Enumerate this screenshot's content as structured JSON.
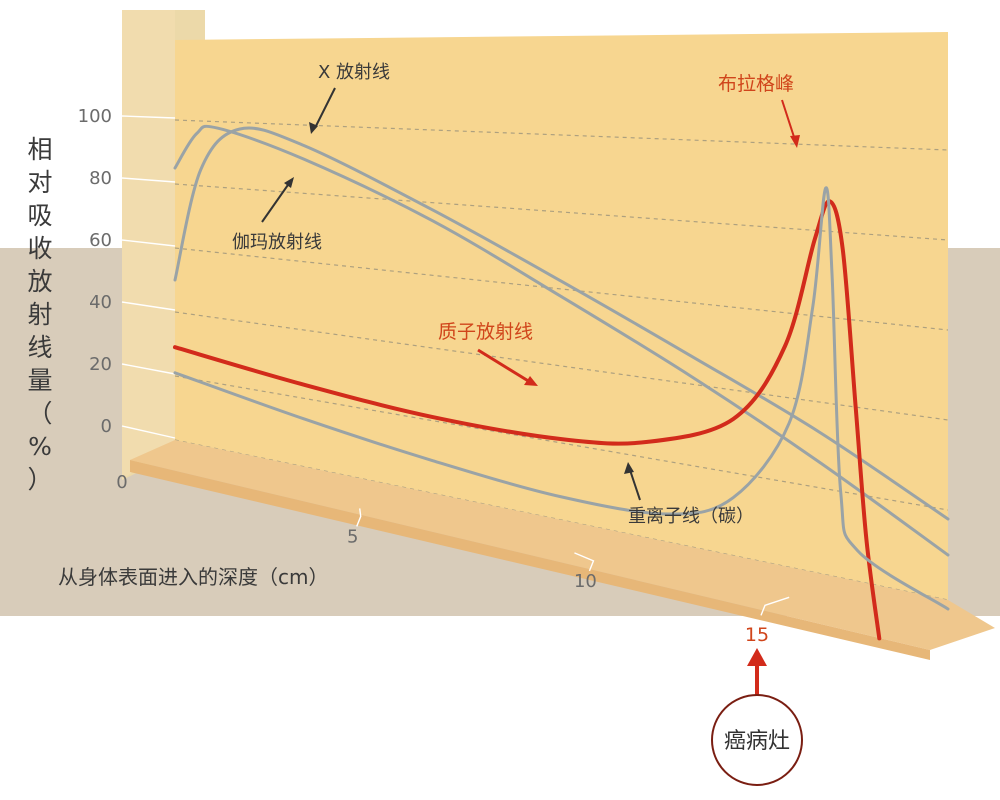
{
  "chart_data": {
    "type": "line",
    "ylabel": "相对吸收放射线量（%）",
    "xlabel": "从身体表面进入的深度（cm）",
    "y_ticks": [
      "100",
      "80",
      "60",
      "40",
      "20",
      "0"
    ],
    "x_ticks": [
      "0",
      "5",
      "10",
      "15"
    ],
    "ylim": [
      0,
      100
    ],
    "xlim": [
      0,
      18
    ],
    "grid": true,
    "series": [
      {
        "name": "X 放射线",
        "color": "#9aa3a6",
        "points": [
          [
            0,
            50
          ],
          [
            0.6,
            85
          ],
          [
            1.5,
            98
          ],
          [
            3,
            94
          ],
          [
            6,
            78
          ],
          [
            9,
            62
          ],
          [
            12,
            47
          ],
          [
            15,
            33
          ],
          [
            18,
            18
          ]
        ]
      },
      {
        "name": "伽玛放射线",
        "color": "#9aa3a6",
        "points": [
          [
            0,
            85
          ],
          [
            0.5,
            96
          ],
          [
            1,
            98
          ],
          [
            3,
            90
          ],
          [
            6,
            75
          ],
          [
            9,
            58
          ],
          [
            12,
            42
          ],
          [
            15,
            26
          ],
          [
            18,
            10
          ]
        ]
      },
      {
        "name": "质子放射线",
        "color": "#d22b1b",
        "points": [
          [
            0,
            29
          ],
          [
            3,
            24
          ],
          [
            6,
            21
          ],
          [
            9,
            21
          ],
          [
            11,
            24
          ],
          [
            13,
            33
          ],
          [
            14.2,
            52
          ],
          [
            14.9,
            78
          ],
          [
            15.25,
            87
          ],
          [
            15.55,
            76
          ],
          [
            15.85,
            40
          ],
          [
            16.1,
            10
          ],
          [
            16.4,
            -12
          ]
        ]
      },
      {
        "name": "重离子线（碳）",
        "color": "#9aa3a6",
        "points": [
          [
            0,
            21
          ],
          [
            3,
            14
          ],
          [
            6,
            9
          ],
          [
            9,
            6
          ],
          [
            11.5,
            7
          ],
          [
            13,
            14
          ],
          [
            14.3,
            34
          ],
          [
            14.85,
            62
          ],
          [
            15.15,
            90
          ],
          [
            15.3,
            70
          ],
          [
            15.5,
            20
          ],
          [
            15.9,
            7
          ],
          [
            18,
            -2
          ]
        ]
      }
    ],
    "annotations": {
      "bragg_peak": "布拉格峰",
      "tumor_depth": "15",
      "tumor": "癌病灶"
    }
  }
}
